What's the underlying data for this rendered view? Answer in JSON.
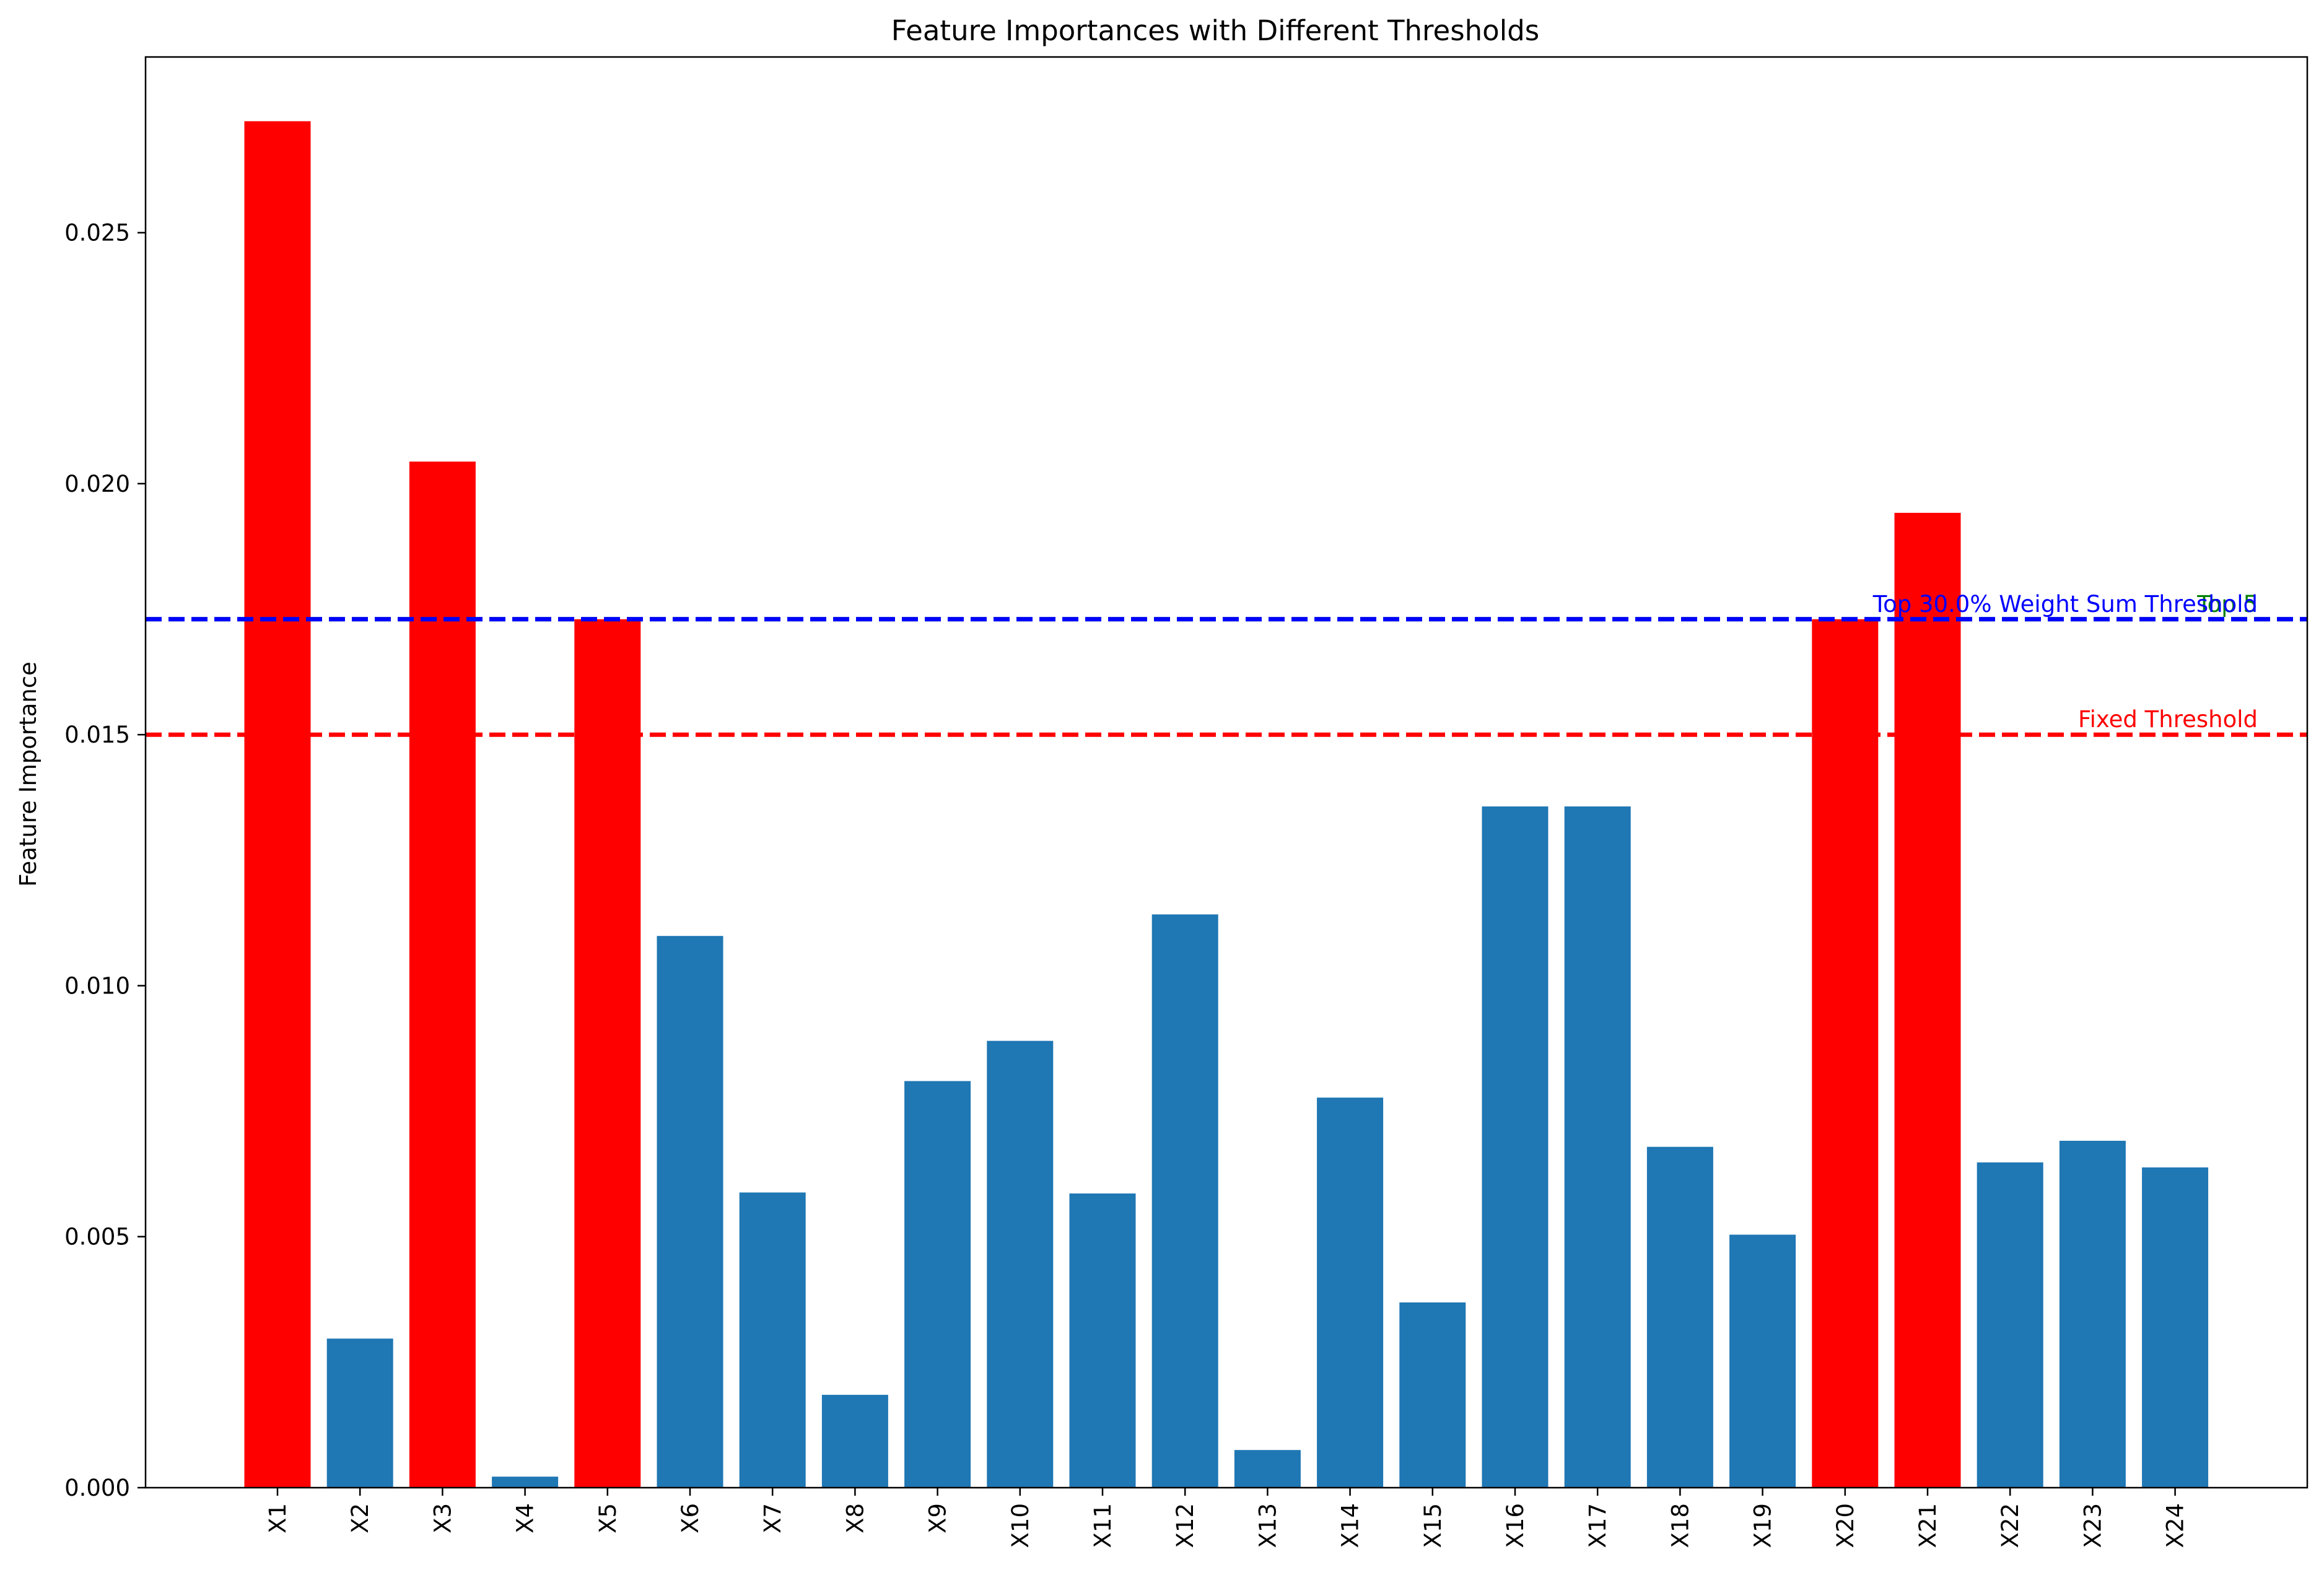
{
  "chart_data": {
    "type": "bar",
    "title": "Feature Importances with Different Thresholds",
    "xlabel": "",
    "ylabel": "Feature Importance",
    "ylim": [
      0,
      0.0285
    ],
    "yticks": [
      0.0,
      0.005,
      0.01,
      0.015,
      0.02,
      0.025
    ],
    "ytick_labels": [
      "0.000",
      "0.005",
      "0.010",
      "0.015",
      "0.020",
      "0.025"
    ],
    "categories": [
      "X1",
      "X2",
      "X3",
      "X4",
      "X5",
      "X6",
      "X7",
      "X8",
      "X9",
      "X10",
      "X11",
      "X12",
      "X13",
      "X14",
      "X15",
      "X16",
      "X17",
      "X18",
      "X19",
      "X20",
      "X21",
      "X22",
      "X23",
      "X24"
    ],
    "values": [
      0.02722,
      0.00297,
      0.02044,
      0.00022,
      0.0173,
      0.01099,
      0.00588,
      0.00185,
      0.0081,
      0.0089,
      0.00586,
      0.01142,
      0.00075,
      0.00777,
      0.00369,
      0.01357,
      0.01357,
      0.00679,
      0.00504,
      0.0173,
      0.01942,
      0.00648,
      0.00691,
      0.00638
    ],
    "highlighted": [
      "X1",
      "X3",
      "X5",
      "X20",
      "X21"
    ],
    "colors": {
      "default_bar": "#1f77b4",
      "highlight_bar": "#ff0000",
      "fixed_threshold": "#ff0000",
      "weight_threshold": "#0000ff",
      "topk_threshold": "#008000"
    },
    "thresholds": [
      {
        "label": "Fixed Threshold",
        "value": 0.015,
        "color": "#ff0000"
      },
      {
        "label": "Top 5",
        "value": 0.0173,
        "color": "#008000"
      },
      {
        "label": "Top 30.0% Weight Sum Threshold",
        "value": 0.0173,
        "color": "#0000ff"
      }
    ],
    "grid": false,
    "legend": "none"
  }
}
